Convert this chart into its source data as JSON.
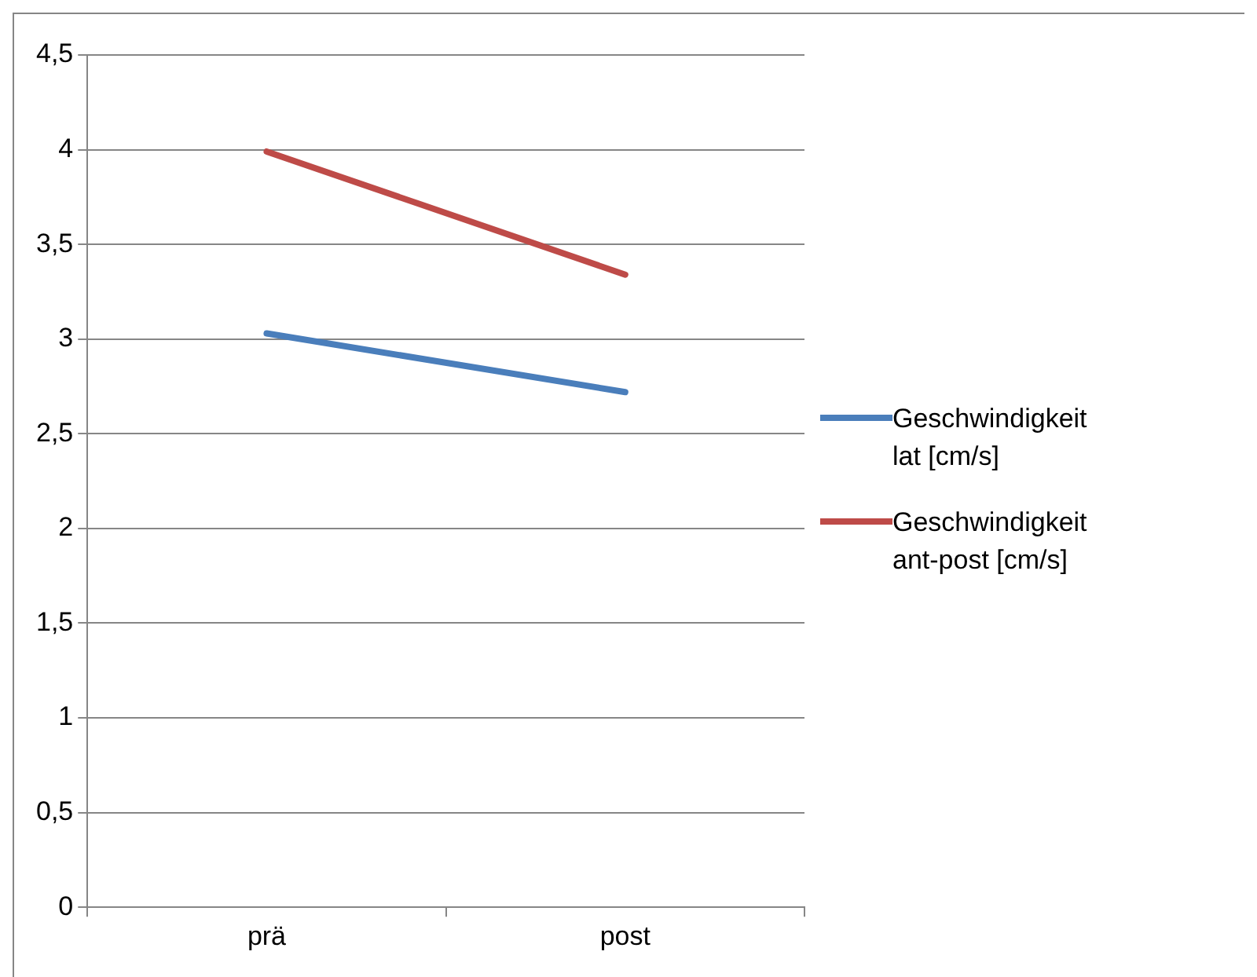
{
  "chart_data": {
    "type": "line",
    "categories": [
      "prä",
      "post"
    ],
    "series": [
      {
        "name": "Geschwindigkeit lat [cm/s]",
        "color": "#4a7ebb",
        "values": [
          3.03,
          2.72
        ]
      },
      {
        "name": "Geschwindigkeit ant-post [cm/s]",
        "color": "#be4b48",
        "values": [
          3.99,
          3.34
        ]
      }
    ],
    "ylim": [
      0,
      4.5
    ],
    "yticks": [
      0,
      {
        "value": 0.5,
        "label": "0,5"
      },
      1,
      {
        "value": 1.5,
        "label": "1,5"
      },
      2,
      {
        "value": 2.5,
        "label": "2,5"
      },
      3,
      {
        "value": 3.5,
        "label": "3,5"
      },
      4,
      {
        "value": 4.5,
        "label": "4,5"
      }
    ],
    "grid": "y",
    "legend": "right",
    "marker": "none",
    "line_style": "solid"
  }
}
